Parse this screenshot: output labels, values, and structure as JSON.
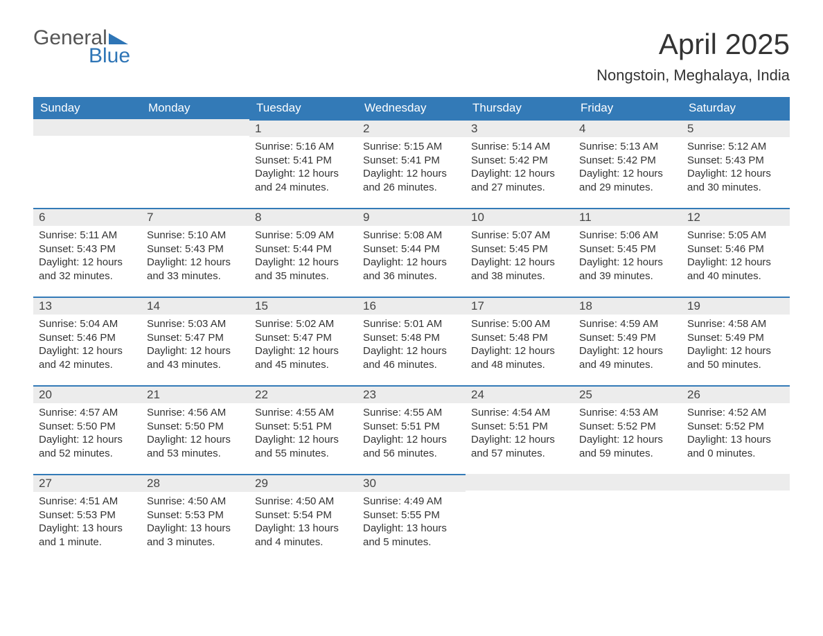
{
  "logo": {
    "text1": "General",
    "text2": "Blue"
  },
  "header": {
    "month_title": "April 2025",
    "location": "Nongstoin, Meghalaya, India"
  },
  "colors": {
    "header_bg": "#337ab7",
    "header_text": "#ffffff",
    "daynum_bg": "#ececec",
    "accent": "#2e75b6",
    "body_text": "#333333"
  },
  "weekdays": [
    "Sunday",
    "Monday",
    "Tuesday",
    "Wednesday",
    "Thursday",
    "Friday",
    "Saturday"
  ],
  "first_weekday_index": 2,
  "days": [
    {
      "n": 1,
      "sunrise": "5:16 AM",
      "sunset": "5:41 PM",
      "daylight": "12 hours and 24 minutes."
    },
    {
      "n": 2,
      "sunrise": "5:15 AM",
      "sunset": "5:41 PM",
      "daylight": "12 hours and 26 minutes."
    },
    {
      "n": 3,
      "sunrise": "5:14 AM",
      "sunset": "5:42 PM",
      "daylight": "12 hours and 27 minutes."
    },
    {
      "n": 4,
      "sunrise": "5:13 AM",
      "sunset": "5:42 PM",
      "daylight": "12 hours and 29 minutes."
    },
    {
      "n": 5,
      "sunrise": "5:12 AM",
      "sunset": "5:43 PM",
      "daylight": "12 hours and 30 minutes."
    },
    {
      "n": 6,
      "sunrise": "5:11 AM",
      "sunset": "5:43 PM",
      "daylight": "12 hours and 32 minutes."
    },
    {
      "n": 7,
      "sunrise": "5:10 AM",
      "sunset": "5:43 PM",
      "daylight": "12 hours and 33 minutes."
    },
    {
      "n": 8,
      "sunrise": "5:09 AM",
      "sunset": "5:44 PM",
      "daylight": "12 hours and 35 minutes."
    },
    {
      "n": 9,
      "sunrise": "5:08 AM",
      "sunset": "5:44 PM",
      "daylight": "12 hours and 36 minutes."
    },
    {
      "n": 10,
      "sunrise": "5:07 AM",
      "sunset": "5:45 PM",
      "daylight": "12 hours and 38 minutes."
    },
    {
      "n": 11,
      "sunrise": "5:06 AM",
      "sunset": "5:45 PM",
      "daylight": "12 hours and 39 minutes."
    },
    {
      "n": 12,
      "sunrise": "5:05 AM",
      "sunset": "5:46 PM",
      "daylight": "12 hours and 40 minutes."
    },
    {
      "n": 13,
      "sunrise": "5:04 AM",
      "sunset": "5:46 PM",
      "daylight": "12 hours and 42 minutes."
    },
    {
      "n": 14,
      "sunrise": "5:03 AM",
      "sunset": "5:47 PM",
      "daylight": "12 hours and 43 minutes."
    },
    {
      "n": 15,
      "sunrise": "5:02 AM",
      "sunset": "5:47 PM",
      "daylight": "12 hours and 45 minutes."
    },
    {
      "n": 16,
      "sunrise": "5:01 AM",
      "sunset": "5:48 PM",
      "daylight": "12 hours and 46 minutes."
    },
    {
      "n": 17,
      "sunrise": "5:00 AM",
      "sunset": "5:48 PM",
      "daylight": "12 hours and 48 minutes."
    },
    {
      "n": 18,
      "sunrise": "4:59 AM",
      "sunset": "5:49 PM",
      "daylight": "12 hours and 49 minutes."
    },
    {
      "n": 19,
      "sunrise": "4:58 AM",
      "sunset": "5:49 PM",
      "daylight": "12 hours and 50 minutes."
    },
    {
      "n": 20,
      "sunrise": "4:57 AM",
      "sunset": "5:50 PM",
      "daylight": "12 hours and 52 minutes."
    },
    {
      "n": 21,
      "sunrise": "4:56 AM",
      "sunset": "5:50 PM",
      "daylight": "12 hours and 53 minutes."
    },
    {
      "n": 22,
      "sunrise": "4:55 AM",
      "sunset": "5:51 PM",
      "daylight": "12 hours and 55 minutes."
    },
    {
      "n": 23,
      "sunrise": "4:55 AM",
      "sunset": "5:51 PM",
      "daylight": "12 hours and 56 minutes."
    },
    {
      "n": 24,
      "sunrise": "4:54 AM",
      "sunset": "5:51 PM",
      "daylight": "12 hours and 57 minutes."
    },
    {
      "n": 25,
      "sunrise": "4:53 AM",
      "sunset": "5:52 PM",
      "daylight": "12 hours and 59 minutes."
    },
    {
      "n": 26,
      "sunrise": "4:52 AM",
      "sunset": "5:52 PM",
      "daylight": "13 hours and 0 minutes."
    },
    {
      "n": 27,
      "sunrise": "4:51 AM",
      "sunset": "5:53 PM",
      "daylight": "13 hours and 1 minute."
    },
    {
      "n": 28,
      "sunrise": "4:50 AM",
      "sunset": "5:53 PM",
      "daylight": "13 hours and 3 minutes."
    },
    {
      "n": 29,
      "sunrise": "4:50 AM",
      "sunset": "5:54 PM",
      "daylight": "13 hours and 4 minutes."
    },
    {
      "n": 30,
      "sunrise": "4:49 AM",
      "sunset": "5:55 PM",
      "daylight": "13 hours and 5 minutes."
    }
  ],
  "labels": {
    "sunrise": "Sunrise: ",
    "sunset": "Sunset: ",
    "daylight": "Daylight: "
  }
}
